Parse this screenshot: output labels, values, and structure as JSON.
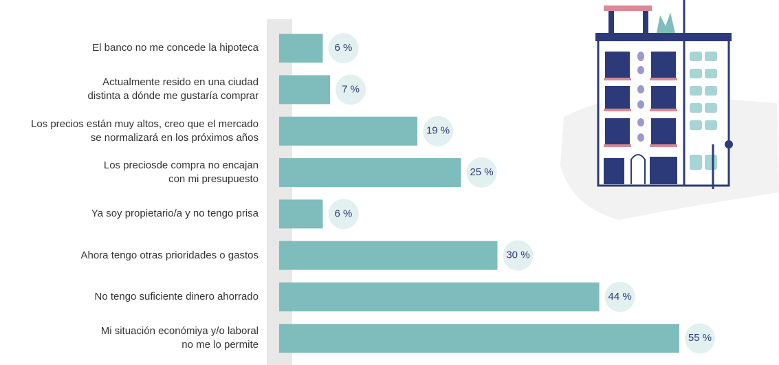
{
  "chart_data": {
    "type": "bar",
    "orientation": "horizontal",
    "categories": [
      "El banco no me concede la hipoteca",
      "Actualmente resido en una ciudad\ndistinta a dónde me gustaría comprar",
      "Los precios están muy altos, creo que el mercado\nse normalizará en los próximos años",
      "Los preciosde compra no encajan\ncon mi presupuesto",
      "Ya soy propietario/a y no tengo prisa",
      "Ahora tengo otras prioridades o gastos",
      "No tengo suficiente dinero ahorrado",
      "Mi situación económiya y/o laboral\nno me lo permite"
    ],
    "values": [
      6,
      7,
      19,
      25,
      6,
      30,
      44,
      55
    ],
    "value_labels": [
      "6 %",
      "7 %",
      "19 %",
      "25 %",
      "6 %",
      "30 %",
      "44 %",
      "55 %"
    ],
    "color": "#7fbcbc"
  }
}
